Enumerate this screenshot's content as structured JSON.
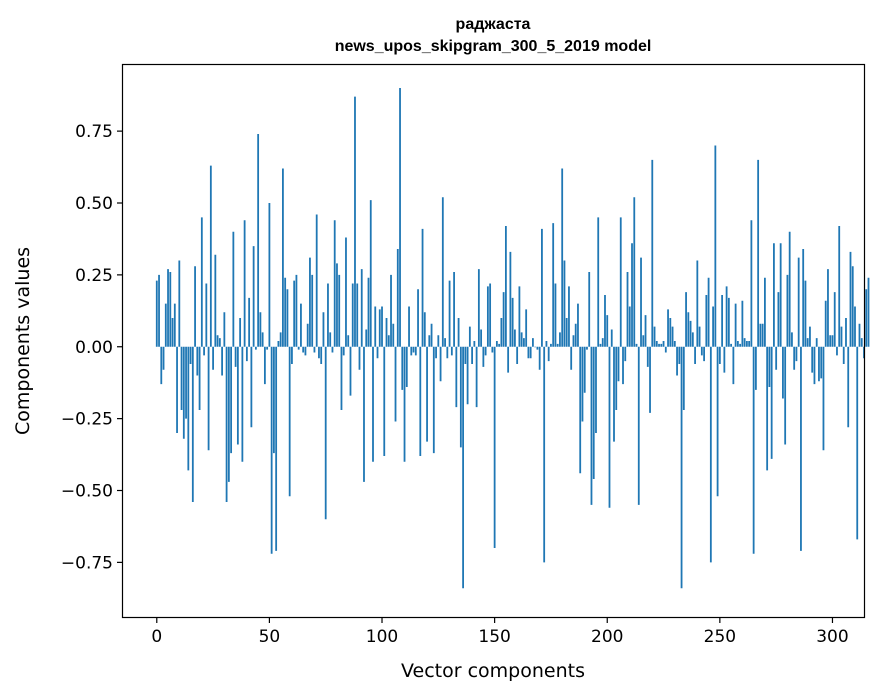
{
  "chart_data": {
    "type": "bar",
    "title": "раджаста",
    "subtitle": "news_upos_skipgram_300_5_2019 model",
    "xlabel": "Vector components",
    "ylabel": "Components values",
    "xlim": [
      -15,
      314
    ],
    "ylim": [
      -0.94,
      0.98
    ],
    "xticks": [
      0,
      50,
      100,
      150,
      200,
      250,
      300
    ],
    "xtick_labels": [
      "0",
      "50",
      "100",
      "150",
      "200",
      "250",
      "300"
    ],
    "yticks": [
      -0.75,
      -0.5,
      -0.25,
      0.0,
      0.25,
      0.5,
      0.75
    ],
    "ytick_labels": [
      "−0.75",
      "−0.50",
      "−0.25",
      "0.00",
      "0.25",
      "0.50",
      "0.75"
    ],
    "grid": false,
    "color": "#1f77b4",
    "x_start": 0,
    "values": [
      0.23,
      0.25,
      -0.13,
      -0.08,
      0.15,
      0.27,
      0.26,
      0.1,
      0.15,
      -0.3,
      0.3,
      -0.22,
      -0.32,
      -0.25,
      -0.43,
      -0.06,
      -0.54,
      0.28,
      -0.1,
      -0.22,
      0.45,
      -0.03,
      0.22,
      -0.36,
      0.63,
      -0.08,
      0.32,
      0.04,
      0.03,
      -0.1,
      0.12,
      -0.54,
      -0.47,
      -0.37,
      0.4,
      -0.07,
      -0.34,
      0.1,
      -0.4,
      0.44,
      -0.05,
      0.17,
      -0.28,
      0.35,
      -0.01,
      0.74,
      0.12,
      0.05,
      -0.13,
      -0.01,
      0.5,
      -0.72,
      -0.37,
      -0.71,
      0.02,
      0.05,
      0.62,
      0.24,
      0.2,
      -0.52,
      -0.06,
      0.23,
      0.25,
      -0.01,
      0.15,
      -0.02,
      -0.03,
      0.08,
      0.31,
      0.25,
      -0.02,
      0.46,
      -0.04,
      -0.06,
      0.12,
      -0.6,
      0.22,
      0.05,
      -0.02,
      0.44,
      0.29,
      0.25,
      -0.22,
      -0.03,
      0.38,
      0.04,
      -0.17,
      0.22,
      0.87,
      0.22,
      -0.08,
      0.27,
      -0.47,
      0.06,
      0.24,
      0.51,
      -0.4,
      0.14,
      -0.04,
      0.13,
      0.14,
      -0.38,
      0.1,
      0.04,
      0.25,
      0.08,
      -0.26,
      0.34,
      0.9,
      -0.15,
      -0.4,
      -0.14,
      0.14,
      -0.03,
      -0.02,
      -0.03,
      0.2,
      -0.38,
      0.41,
      0.12,
      -0.33,
      0.04,
      0.08,
      -0.37,
      -0.04,
      0.04,
      -0.12,
      0.52,
      0.03,
      -0.04,
      0.23,
      -0.03,
      0.26,
      -0.21,
      0.1,
      -0.35,
      -0.84,
      -0.06,
      -0.2,
      0.07,
      -0.06,
      0.02,
      -0.21,
      0.27,
      0.06,
      -0.07,
      -0.03,
      0.21,
      0.22,
      -0.02,
      -0.7,
      0.02,
      0.01,
      0.1,
      0.19,
      0.42,
      -0.09,
      0.33,
      0.17,
      0.06,
      -0.06,
      0.21,
      0.05,
      0.03,
      0.13,
      -0.04,
      -0.04,
      0.03,
      0.0,
      -0.01,
      -0.08,
      0.41,
      -0.75,
      0.02,
      -0.05,
      0.01,
      0.43,
      0.22,
      0.01,
      0.05,
      0.62,
      0.3,
      0.1,
      0.21,
      -0.08,
      0.04,
      0.08,
      0.15,
      -0.44,
      -0.26,
      -0.16,
      -0.01,
      0.26,
      -0.55,
      -0.46,
      -0.3,
      0.45,
      0.01,
      0.03,
      0.18,
      0.11,
      -0.56,
      0.06,
      -0.33,
      -0.22,
      -0.12,
      0.45,
      -0.13,
      -0.05,
      0.26,
      0.14,
      0.36,
      0.52,
      0.01,
      -0.55,
      0.31,
      0.04,
      0.11,
      -0.07,
      -0.23,
      0.65,
      0.07,
      0.02,
      0.01,
      0.01,
      0.02,
      -0.02,
      0.13,
      0.1,
      0.07,
      0.02,
      -0.1,
      -0.06,
      -0.84,
      -0.22,
      0.19,
      0.12,
      0.09,
      0.05,
      -0.06,
      0.3,
      0.07,
      -0.03,
      -0.05,
      0.18,
      0.24,
      -0.75,
      0.14,
      0.7,
      -0.52,
      -0.06,
      0.18,
      -0.09,
      0.21,
      0.17,
      0.01,
      -0.13,
      0.15,
      0.02,
      0.01,
      0.16,
      0.03,
      0.02,
      0.02,
      0.44,
      -0.72,
      -0.15,
      0.65,
      0.08,
      0.08,
      0.24,
      -0.43,
      -0.14,
      -0.39,
      0.36,
      -0.08,
      0.19,
      0.36,
      -0.18,
      -0.34,
      0.25,
      0.4,
      0.05,
      -0.08,
      -0.05,
      0.31,
      -0.71,
      0.34,
      0.23,
      0.03,
      0.07,
      -0.09,
      -0.13,
      0.03,
      -0.12,
      -0.11,
      -0.36,
      0.16,
      0.27,
      0.04,
      0.04,
      0.19,
      -0.03,
      0.42,
      0.07,
      -0.06,
      0.1,
      -0.28,
      0.33,
      0.28,
      0.14,
      -0.67,
      0.08,
      0.03,
      -0.04,
      0.2,
      0.24
    ]
  }
}
